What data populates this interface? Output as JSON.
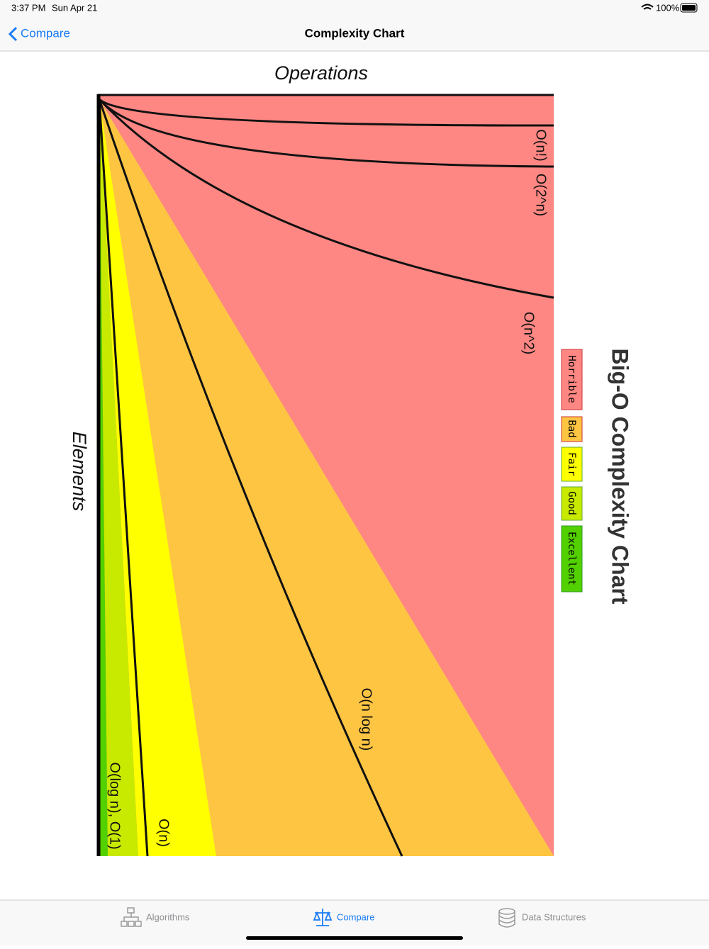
{
  "status_bar": {
    "time": "3:37 PM",
    "date": "Sun Apr 21",
    "battery": "100%"
  },
  "nav_bar": {
    "back": "Compare",
    "title": "Complexity Chart"
  },
  "chart_image": {
    "title": "Big-O Complexity Chart",
    "x_label": "Operations",
    "y_label": "Elements",
    "curves": [
      "O(n!)",
      "O(2^n)",
      "O(n^2)",
      "O(n log n)",
      "O(n)",
      "O(log n), O(1)"
    ],
    "legend": [
      "Horrible",
      "Bad",
      "Fair",
      "Good",
      "Excellent"
    ]
  },
  "tab_bar": {
    "items": [
      "Algorithms",
      "Compare",
      "Data Structures"
    ]
  }
}
